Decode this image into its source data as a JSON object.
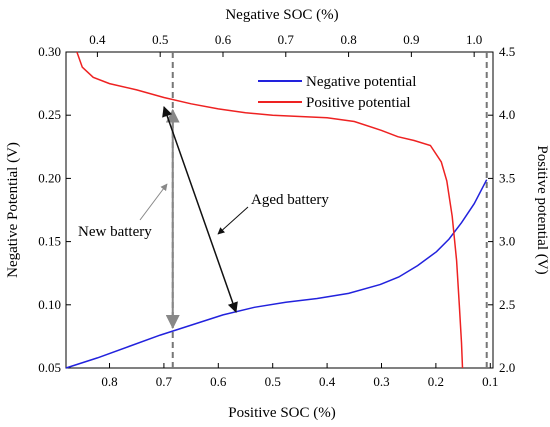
{
  "chart_data": {
    "type": "line",
    "title": "",
    "axes": {
      "bottom": {
        "label": "Positive SOC (%)",
        "ticks": [
          "0.8",
          "0.7",
          "0.6",
          "0.5",
          "0.4",
          "0.3",
          "0.2",
          "0.1"
        ]
      },
      "top": {
        "label": "Negative SOC (%)",
        "ticks": [
          "0.4",
          "0.5",
          "0.6",
          "0.7",
          "0.8",
          "0.9",
          "1.0"
        ]
      },
      "left": {
        "label": "Negative Potential (V)",
        "ticks": [
          "0.05",
          "0.10",
          "0.15",
          "0.20",
          "0.25",
          "0.30"
        ],
        "ylim": [
          0.05,
          0.3
        ]
      },
      "right": {
        "label": "Positive potential (V)",
        "ticks": [
          "2.0",
          "2.5",
          "3.0",
          "3.5",
          "4.0",
          "4.5"
        ],
        "ylim": [
          2.0,
          4.5
        ]
      }
    },
    "x_top_range": [
      0.35,
      1.03
    ],
    "series": [
      {
        "name": "Negative potential",
        "color": "#2222dd",
        "axis": "left",
        "x_axis": "top",
        "points": [
          [
            0.35,
            0.05
          ],
          [
            0.4,
            0.058
          ],
          [
            0.45,
            0.067
          ],
          [
            0.5,
            0.076
          ],
          [
            0.55,
            0.084
          ],
          [
            0.6,
            0.092
          ],
          [
            0.65,
            0.098
          ],
          [
            0.7,
            0.102
          ],
          [
            0.75,
            0.105
          ],
          [
            0.8,
            0.109
          ],
          [
            0.85,
            0.116
          ],
          [
            0.88,
            0.122
          ],
          [
            0.91,
            0.131
          ],
          [
            0.94,
            0.142
          ],
          [
            0.96,
            0.152
          ],
          [
            0.98,
            0.165
          ],
          [
            1.0,
            0.18
          ],
          [
            1.02,
            0.199
          ]
        ]
      },
      {
        "name": "Positive potential",
        "color": "#ee2222",
        "axis": "right",
        "points": [
          [
            0.86,
            4.5
          ],
          [
            0.85,
            4.38
          ],
          [
            0.83,
            4.3
          ],
          [
            0.8,
            4.25
          ],
          [
            0.75,
            4.2
          ],
          [
            0.7,
            4.14
          ],
          [
            0.65,
            4.09
          ],
          [
            0.6,
            4.05
          ],
          [
            0.55,
            4.02
          ],
          [
            0.5,
            4.0
          ],
          [
            0.45,
            3.99
          ],
          [
            0.4,
            3.98
          ],
          [
            0.35,
            3.95
          ],
          [
            0.3,
            3.88
          ],
          [
            0.27,
            3.83
          ],
          [
            0.24,
            3.8
          ],
          [
            0.21,
            3.76
          ],
          [
            0.19,
            3.63
          ],
          [
            0.18,
            3.48
          ],
          [
            0.17,
            3.2
          ],
          [
            0.162,
            2.85
          ],
          [
            0.157,
            2.5
          ],
          [
            0.153,
            2.2
          ],
          [
            0.151,
            2.0
          ]
        ]
      }
    ],
    "legend": {
      "position": "top-right"
    },
    "annotations": {
      "new_battery": "New battery",
      "aged_battery": "Aged battery"
    },
    "reference_lines": {
      "negative_soc": [
        0.52,
        1.02
      ]
    },
    "grid": false
  }
}
